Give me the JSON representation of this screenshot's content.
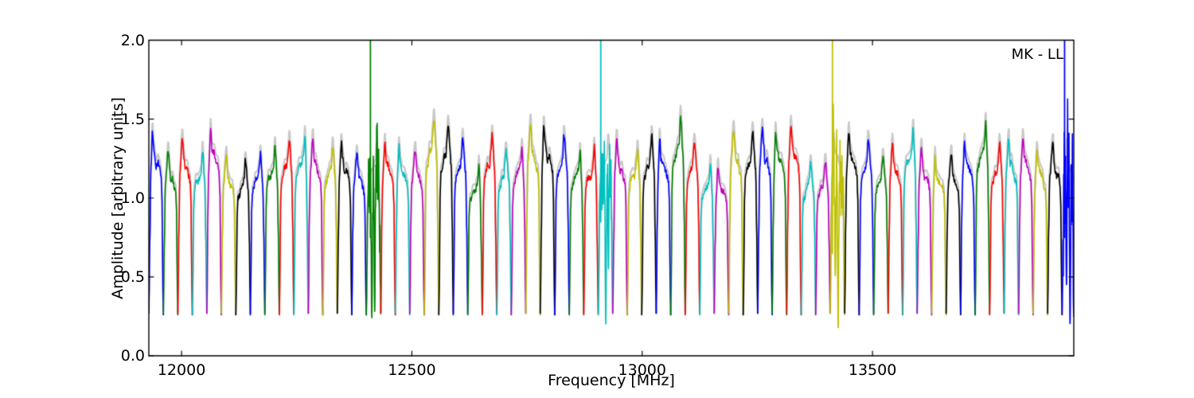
{
  "figure": {
    "background_color": "#ffffff",
    "axes_color": "#000000",
    "text_color": "#000000"
  },
  "chart_data": {
    "type": "line",
    "title": "",
    "annotation": "MK - LL",
    "xlabel": "Frequency [MHz]",
    "ylabel": "Amplitude [arbitrary units]",
    "xlim": [
      11929,
      13937
    ],
    "ylim": [
      0.0,
      2.0
    ],
    "xticks": [
      12000,
      12500,
      13000,
      13500
    ],
    "yticks": [
      0.0,
      0.5,
      1.0,
      1.5,
      2.0
    ],
    "grid": false,
    "legend_position": "none",
    "description": "Bandpass spectrum of 64 contiguous ~31.5 MHz subbands, colors cycling blue/green/red/cyan/magenta/olive/black, with a light-gray envelope behind each subband and four RFI-affected subbands showing full-height spikes and deep dips.",
    "band_start_mhz": 11929,
    "subband_width_mhz": 31.47,
    "n_subbands": 64,
    "baseline_amplitude": 0.27,
    "color_cycle": [
      "#0000ff",
      "#008000",
      "#ff0000",
      "#00bfbf",
      "#bf00bf",
      "#bfbf00",
      "#000000"
    ],
    "envelope_color": "#c9c9c9",
    "subband_peak_amplitudes": [
      1.42,
      1.3,
      1.38,
      1.3,
      1.44,
      1.27,
      1.24,
      1.28,
      1.33,
      1.37,
      1.4,
      1.38,
      1.33,
      1.35,
      1.28,
      1.3,
      1.35,
      1.33,
      1.3,
      1.5,
      1.46,
      1.38,
      1.22,
      1.4,
      1.3,
      1.32,
      1.47,
      1.46,
      1.4,
      1.3,
      1.33,
      1.35,
      1.38,
      1.31,
      1.4,
      1.38,
      1.52,
      1.35,
      1.22,
      1.2,
      1.43,
      1.42,
      1.44,
      1.42,
      1.46,
      1.22,
      1.23,
      1.36,
      1.42,
      1.37,
      1.26,
      1.35,
      1.44,
      1.32,
      1.27,
      1.28,
      1.35,
      1.48,
      1.35,
      1.38,
      1.38,
      1.3,
      1.35,
      1.33
    ],
    "rfi_subbands": [
      {
        "subband": 15,
        "color": "#008000",
        "spike_freq_mhz": 12410,
        "spike_top": 2.0,
        "spike_base": 0.75,
        "noise_amp": 0.2,
        "dips": [
          {
            "t": 0.38,
            "min": 0.24
          },
          {
            "t": 0.58,
            "min": 0.28
          }
        ]
      },
      {
        "subband": 31,
        "color": "#00bfbf",
        "spike_freq_mhz": 12910,
        "spike_top": 2.0,
        "spike_base": 0.85,
        "noise_amp": 0.18,
        "dips": [
          {
            "t": 0.52,
            "min": 0.2
          },
          {
            "t": 0.7,
            "min": 0.55
          }
        ]
      },
      {
        "subband": 47,
        "color": "#bfbf00",
        "spike_freq_mhz": 13413,
        "spike_top": 2.0,
        "spike_base": 0.65,
        "noise_amp": 0.2,
        "dips": [
          {
            "t": 0.35,
            "min": 0.5
          },
          {
            "t": 0.55,
            "min": 0.17
          }
        ]
      },
      {
        "subband": 63,
        "color": "#0000ff",
        "spike_freq_mhz": 13917,
        "spike_top": 2.0,
        "spike_base": 0.75,
        "noise_amp": 0.35,
        "dips": [
          {
            "t": 0.3,
            "min": 0.45
          },
          {
            "t": 0.55,
            "min": 0.2
          },
          {
            "t": 0.8,
            "min": 0.25
          }
        ]
      }
    ]
  }
}
